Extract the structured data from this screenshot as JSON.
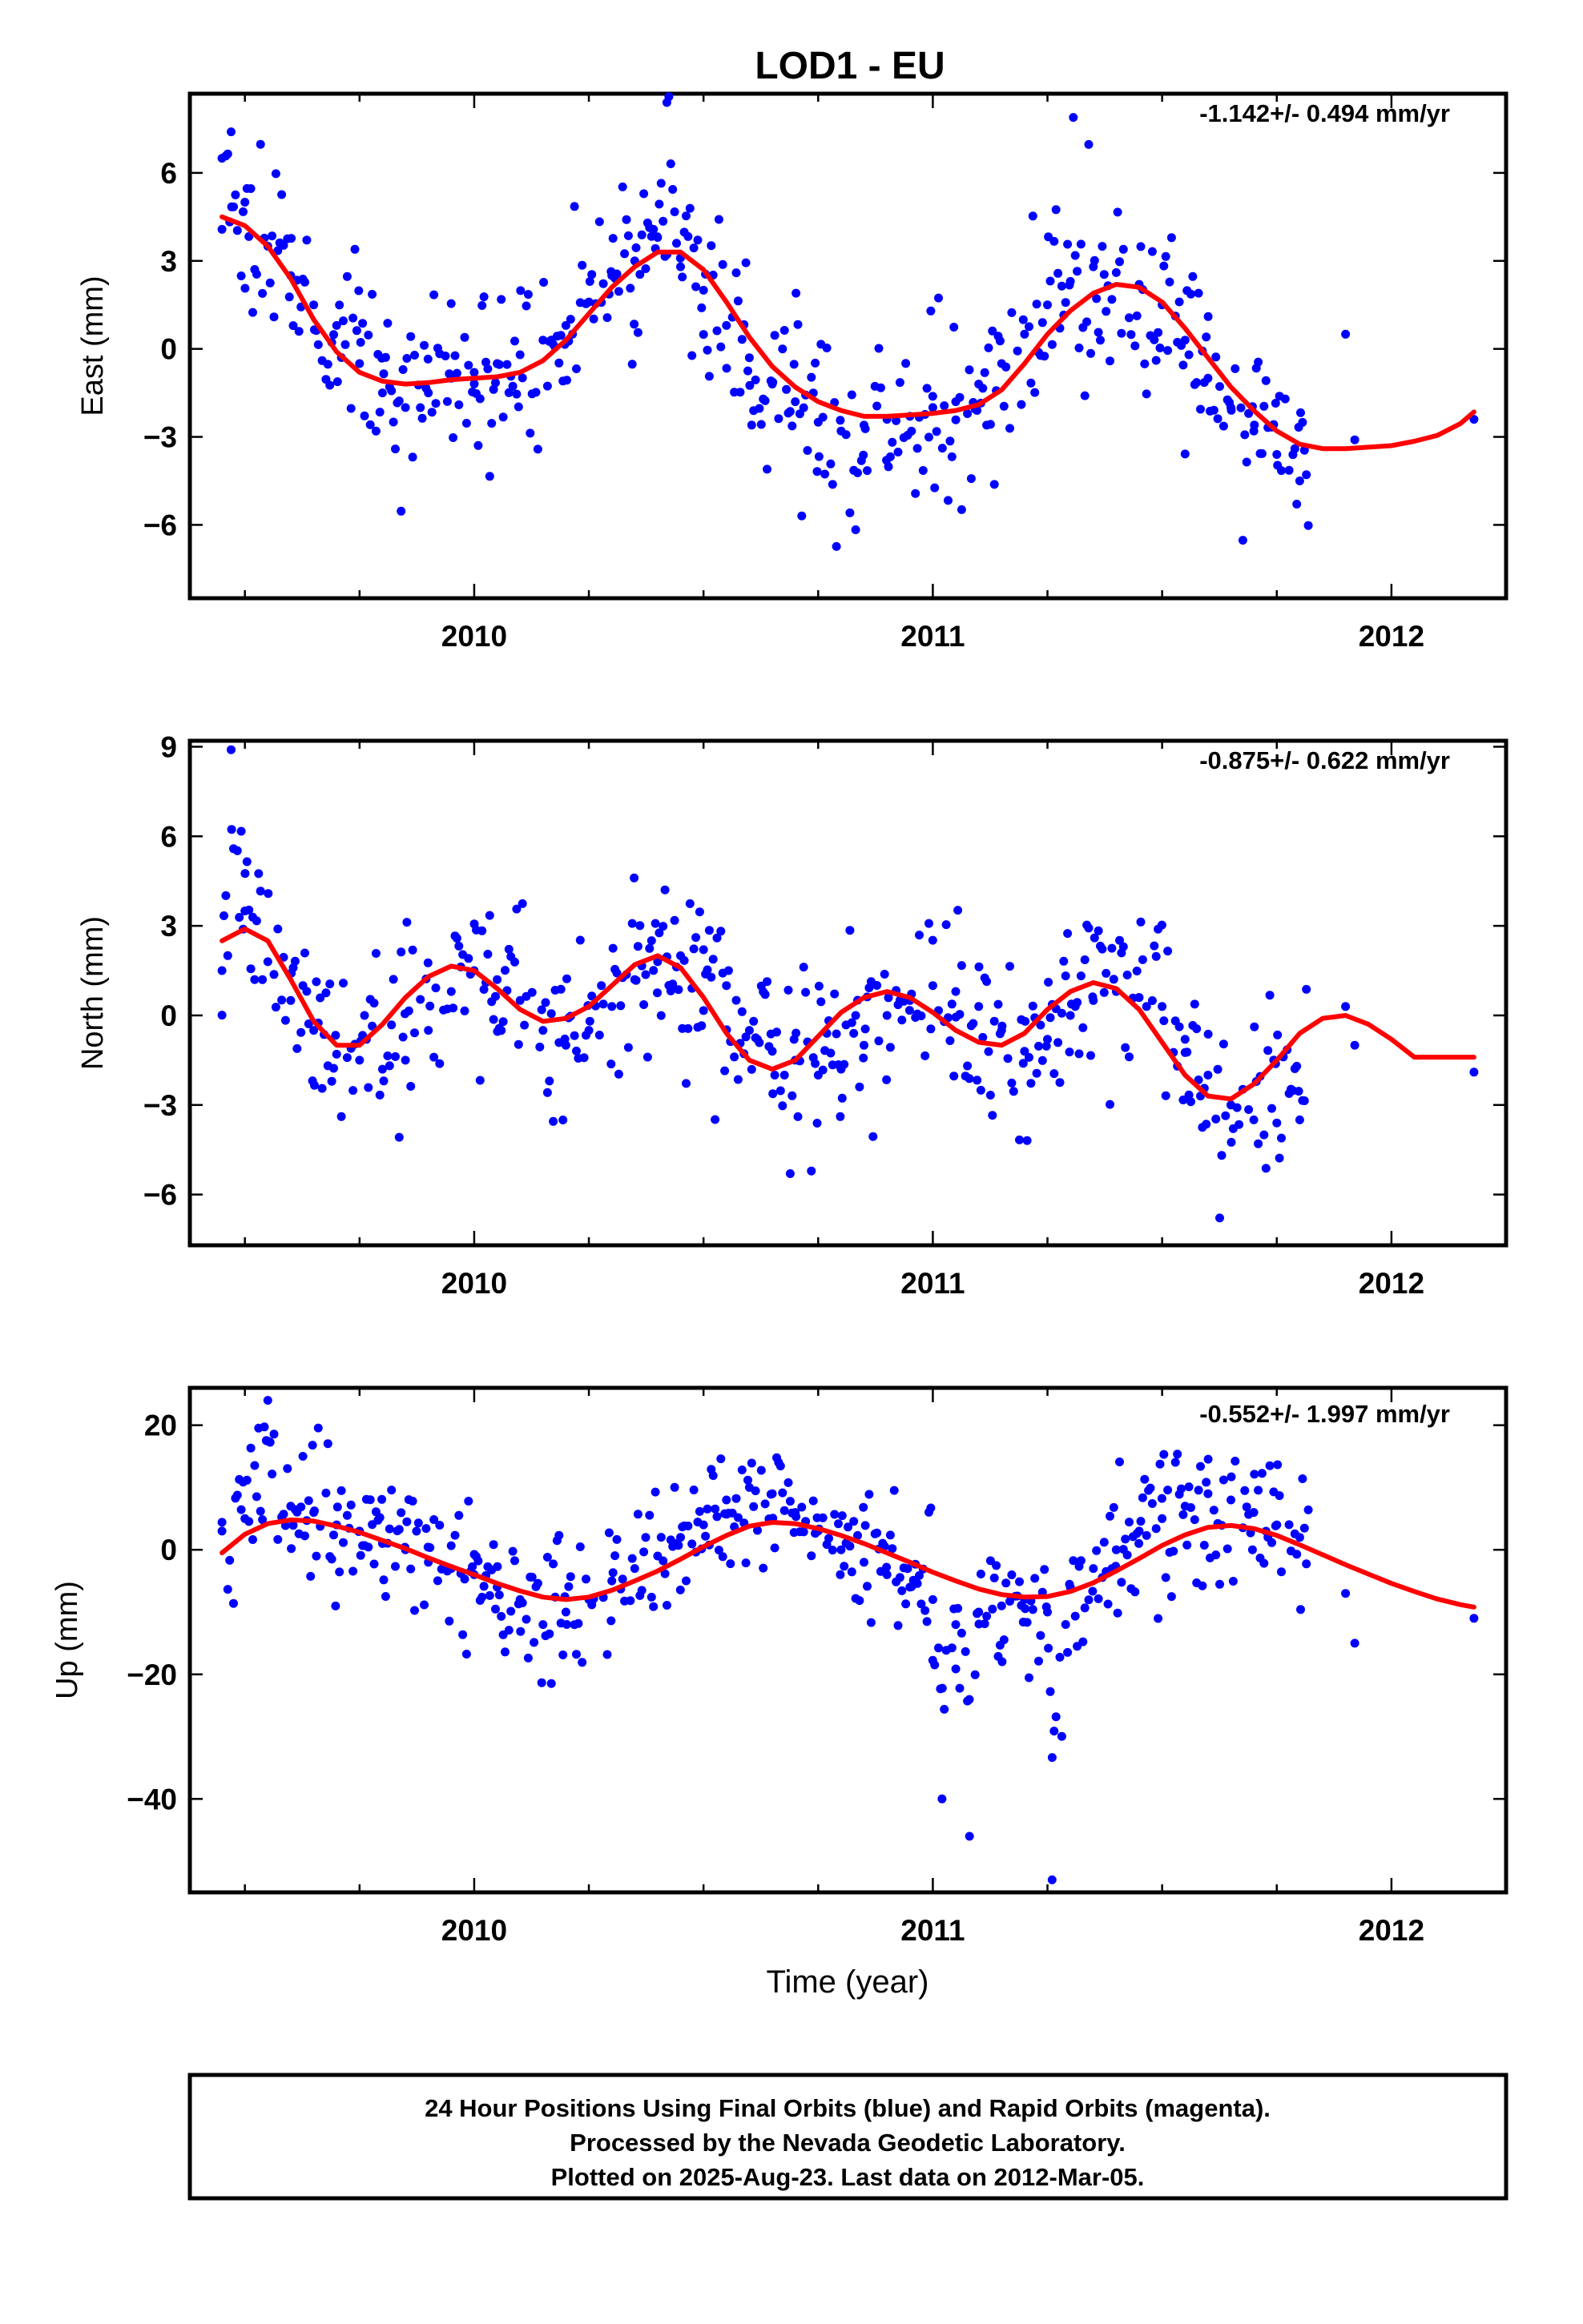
{
  "title": "LOD1 - EU",
  "xlabel": "Time (year)",
  "x_ticks": [
    "2010",
    "2011",
    "2012"
  ],
  "footer": {
    "line1": "24 Hour Positions Using Final Orbits (blue) and Rapid Orbits (magenta).",
    "line2": "Processed by the Nevada Geodetic Laboratory.",
    "line3": "Plotted on 2025-Aug-23. Last data on 2012-Mar-05."
  },
  "colors": {
    "final_orbits": "#0000ff",
    "rapid_orbits": "#ff00ff",
    "model_fit": "#ff0000"
  },
  "chart_data": [
    {
      "type": "scatter",
      "panel": "east",
      "ylabel": "East (mm)",
      "rate_label": "-1.142+/- 0.494 mm/yr",
      "xlim": [
        2009.38,
        2012.25
      ],
      "ylim": [
        -8.5,
        8.7
      ],
      "y_ticks": [
        6,
        3,
        0,
        -3,
        -6
      ],
      "y_tick_labels": [
        "6",
        "3",
        "0",
        "−3",
        "−6"
      ],
      "series": [
        {
          "name": "Final Orbits",
          "points_approx": "dense daily series ~2009.45–2011.82, sparse afterwards",
          "x": [
            2009.45,
            2009.47,
            2009.5,
            2009.55,
            2009.6,
            2009.65,
            2009.7,
            2009.75,
            2009.8,
            2009.85,
            2009.9,
            2009.95,
            2010.0,
            2010.05,
            2010.1,
            2010.15,
            2010.2,
            2010.25,
            2010.3,
            2010.35,
            2010.4,
            2010.42,
            2010.45,
            2010.5,
            2010.55,
            2010.6,
            2010.65,
            2010.7,
            2010.75,
            2010.8,
            2010.85,
            2010.9,
            2010.95,
            2011.0,
            2011.05,
            2011.1,
            2011.15,
            2011.2,
            2011.25,
            2011.3,
            2011.35,
            2011.4,
            2011.45,
            2011.5,
            2011.55,
            2011.6,
            2011.65,
            2011.7,
            2011.75,
            2011.8,
            2011.9,
            2011.92,
            2012.18
          ],
          "y": [
            6.5,
            7.4,
            5.0,
            3.5,
            2.5,
            1.5,
            0.8,
            -0.5,
            -1.5,
            -2.0,
            -1.5,
            -1.0,
            -0.8,
            -0.5,
            -0.2,
            0.3,
            0.8,
            1.6,
            2.5,
            3.0,
            3.8,
            8.4,
            2.8,
            2.0,
            0.8,
            -0.3,
            -1.2,
            -1.8,
            -2.5,
            -2.8,
            -2.6,
            -2.4,
            -2.3,
            -2.0,
            -1.8,
            -1.2,
            -0.5,
            0.5,
            1.5,
            2.3,
            2.8,
            2.6,
            2.2,
            1.5,
            0.3,
            -1.0,
            -2.0,
            -2.8,
            -3.6,
            -4.5,
            0.5,
            -3.1,
            -2.4
          ]
        }
      ],
      "fit_x": [
        2009.45,
        2009.5,
        2009.55,
        2009.6,
        2009.65,
        2009.7,
        2009.75,
        2009.8,
        2009.85,
        2009.9,
        2009.95,
        2010.0,
        2010.05,
        2010.1,
        2010.15,
        2010.2,
        2010.25,
        2010.3,
        2010.35,
        2010.4,
        2010.45,
        2010.5,
        2010.55,
        2010.6,
        2010.65,
        2010.7,
        2010.75,
        2010.8,
        2010.85,
        2010.9,
        2010.95,
        2011.0,
        2011.05,
        2011.1,
        2011.15,
        2011.2,
        2011.25,
        2011.3,
        2011.35,
        2011.4,
        2011.45,
        2011.5,
        2011.55,
        2011.6,
        2011.65,
        2011.7,
        2011.75,
        2011.8,
        2011.85,
        2011.9,
        2011.95,
        2012.0,
        2012.05,
        2012.1,
        2012.15,
        2012.18
      ],
      "fit_y": [
        4.5,
        4.2,
        3.5,
        2.4,
        1.0,
        -0.1,
        -0.8,
        -1.1,
        -1.2,
        -1.15,
        -1.05,
        -1.0,
        -0.95,
        -0.8,
        -0.4,
        0.3,
        1.2,
        2.1,
        2.8,
        3.3,
        3.3,
        2.7,
        1.6,
        0.4,
        -0.6,
        -1.3,
        -1.8,
        -2.1,
        -2.3,
        -2.3,
        -2.25,
        -2.2,
        -2.1,
        -1.9,
        -1.4,
        -0.5,
        0.5,
        1.3,
        1.9,
        2.2,
        2.1,
        1.6,
        0.7,
        -0.3,
        -1.3,
        -2.1,
        -2.8,
        -3.25,
        -3.4,
        -3.4,
        -3.35,
        -3.3,
        -3.15,
        -2.95,
        -2.55,
        -2.15
      ]
    },
    {
      "type": "scatter",
      "panel": "north",
      "ylabel": "North (mm)",
      "rate_label": "-0.875+/- 0.622 mm/yr",
      "xlim": [
        2009.38,
        2012.25
      ],
      "ylim": [
        -7.7,
        9.2
      ],
      "y_ticks": [
        9,
        6,
        3,
        0,
        -3,
        -6
      ],
      "y_tick_labels": [
        "9",
        "6",
        "3",
        "0",
        "−3",
        "−6"
      ],
      "series": [
        {
          "name": "Final Orbits",
          "points_approx": "dense daily series ~2009.45–2011.82, sparse afterwards",
          "x": [
            2009.45,
            2009.47,
            2009.5,
            2009.55,
            2009.6,
            2009.65,
            2009.7,
            2009.75,
            2009.8,
            2009.85,
            2009.9,
            2009.95,
            2010.0,
            2010.05,
            2010.1,
            2010.15,
            2010.2,
            2010.25,
            2010.3,
            2010.35,
            2010.4,
            2010.45,
            2010.5,
            2010.55,
            2010.6,
            2010.65,
            2010.7,
            2010.75,
            2010.8,
            2010.85,
            2010.9,
            2010.95,
            2011.0,
            2011.05,
            2011.1,
            2011.15,
            2011.2,
            2011.25,
            2011.3,
            2011.35,
            2011.4,
            2011.45,
            2011.5,
            2011.55,
            2011.6,
            2011.65,
            2011.7,
            2011.75,
            2011.8,
            2011.9,
            2011.92,
            2012.18
          ],
          "y": [
            1.5,
            8.9,
            3.5,
            1.8,
            0.5,
            -0.5,
            -1.3,
            -1.5,
            -1.8,
            -1.5,
            -0.5,
            0.8,
            1.5,
            1.2,
            0.5,
            -0.5,
            -1.0,
            -0.5,
            0.3,
            1.2,
            1.8,
            2.0,
            2.2,
            1.0,
            -0.5,
            -1.2,
            -1.5,
            -2.0,
            -1.8,
            -1.0,
            0.0,
            0.5,
            1.0,
            0.8,
            0.3,
            -0.5,
            -1.2,
            -0.8,
            0.0,
            0.5,
            0.8,
            0.6,
            0.3,
            -0.8,
            -2.0,
            -3.0,
            -3.5,
            -3.6,
            -3.5,
            0.3,
            -1.0,
            -1.9
          ]
        }
      ],
      "fit_x": [
        2009.45,
        2009.5,
        2009.55,
        2009.6,
        2009.65,
        2009.7,
        2009.75,
        2009.8,
        2009.85,
        2009.9,
        2009.95,
        2010.0,
        2010.05,
        2010.1,
        2010.15,
        2010.2,
        2010.25,
        2010.3,
        2010.35,
        2010.4,
        2010.45,
        2010.5,
        2010.55,
        2010.6,
        2010.65,
        2010.7,
        2010.75,
        2010.8,
        2010.85,
        2010.9,
        2010.95,
        2011.0,
        2011.05,
        2011.1,
        2011.15,
        2011.2,
        2011.25,
        2011.3,
        2011.35,
        2011.4,
        2011.45,
        2011.5,
        2011.55,
        2011.6,
        2011.65,
        2011.7,
        2011.75,
        2011.8,
        2011.85,
        2011.9,
        2011.95,
        2012.0,
        2012.05,
        2012.1,
        2012.15,
        2012.18
      ],
      "fit_y": [
        2.5,
        2.9,
        2.5,
        1.2,
        -0.2,
        -1.0,
        -1.0,
        -0.3,
        0.6,
        1.3,
        1.65,
        1.5,
        0.9,
        0.2,
        -0.2,
        -0.1,
        0.3,
        1.0,
        1.7,
        2.0,
        1.6,
        0.6,
        -0.6,
        -1.5,
        -1.8,
        -1.5,
        -0.7,
        0.1,
        0.6,
        0.8,
        0.6,
        0.1,
        -0.5,
        -0.9,
        -1.0,
        -0.6,
        0.2,
        0.8,
        1.1,
        0.9,
        0.2,
        -0.9,
        -2.0,
        -2.7,
        -2.8,
        -2.3,
        -1.5,
        -0.6,
        -0.1,
        0.0,
        -0.3,
        -0.8,
        -1.4,
        -1.4,
        -1.4,
        -1.4
      ]
    },
    {
      "type": "scatter",
      "panel": "up",
      "ylabel": "Up (mm)",
      "rate_label": "-0.552+/- 1.997 mm/yr",
      "xlim": [
        2009.38,
        2012.25
      ],
      "ylim": [
        -55,
        26
      ],
      "y_ticks": [
        20,
        0,
        -20,
        -40
      ],
      "y_tick_labels": [
        "20",
        "0",
        "−20",
        "−40"
      ],
      "series": [
        {
          "name": "Final Orbits",
          "points_approx": "dense daily series ~2009.45–2011.82, sparse afterwards",
          "x": [
            2009.45,
            2009.5,
            2009.55,
            2009.6,
            2009.65,
            2009.7,
            2009.75,
            2009.8,
            2009.85,
            2009.9,
            2009.95,
            2010.0,
            2010.05,
            2010.1,
            2010.15,
            2010.2,
            2010.25,
            2010.3,
            2010.35,
            2010.4,
            2010.45,
            2010.5,
            2010.55,
            2010.6,
            2010.65,
            2010.7,
            2010.75,
            2010.8,
            2010.85,
            2010.9,
            2010.95,
            2011.0,
            2011.02,
            2011.05,
            2011.08,
            2011.1,
            2011.15,
            2011.2,
            2011.25,
            2011.26,
            2011.3,
            2011.35,
            2011.4,
            2011.45,
            2011.5,
            2011.55,
            2011.6,
            2011.65,
            2011.7,
            2011.75,
            2011.8,
            2011.9,
            2011.92,
            2012.18
          ],
          "y": [
            3,
            5,
            24,
            7,
            6,
            4,
            3,
            1,
            0,
            -2,
            -3,
            -4,
            -6,
            -8,
            -12,
            -10,
            -8,
            -5,
            -3,
            -1,
            2,
            4,
            8,
            10,
            9,
            6,
            3,
            0,
            -2,
            -4,
            -6,
            -8,
            -40,
            -12,
            -46,
            -10,
            -9,
            -8,
            -10,
            -53,
            -6,
            -3,
            0,
            3,
            5,
            7,
            9,
            8,
            6,
            4,
            2,
            -7,
            -15,
            -11
          ]
        }
      ],
      "fit_x": [
        2009.45,
        2009.5,
        2009.55,
        2009.6,
        2009.65,
        2009.7,
        2009.75,
        2009.8,
        2009.85,
        2009.9,
        2009.95,
        2010.0,
        2010.05,
        2010.1,
        2010.15,
        2010.2,
        2010.25,
        2010.3,
        2010.35,
        2010.4,
        2010.45,
        2010.5,
        2010.55,
        2010.6,
        2010.65,
        2010.7,
        2010.75,
        2010.8,
        2010.85,
        2010.9,
        2010.95,
        2011.0,
        2011.05,
        2011.1,
        2011.15,
        2011.2,
        2011.25,
        2011.3,
        2011.35,
        2011.4,
        2011.45,
        2011.5,
        2011.55,
        2011.6,
        2011.65,
        2011.7,
        2011.75,
        2011.8,
        2011.85,
        2011.9,
        2011.95,
        2012.0,
        2012.05,
        2012.1,
        2012.15,
        2012.18
      ],
      "fit_y": [
        -0.5,
        2.5,
        4.2,
        4.8,
        4.6,
        3.8,
        2.8,
        1.5,
        0.2,
        -1.3,
        -2.7,
        -4.0,
        -5.4,
        -6.6,
        -7.6,
        -8.0,
        -7.6,
        -6.5,
        -5.0,
        -3.4,
        -1.5,
        0.5,
        2.3,
        3.8,
        4.4,
        4.2,
        3.4,
        2.3,
        1.0,
        -0.5,
        -2.0,
        -3.6,
        -5.0,
        -6.3,
        -7.2,
        -7.6,
        -7.5,
        -6.7,
        -5.3,
        -3.4,
        -1.4,
        0.7,
        2.4,
        3.6,
        3.9,
        3.4,
        2.3,
        0.8,
        -0.8,
        -2.4,
        -3.9,
        -5.4,
        -6.7,
        -7.9,
        -8.8,
        -9.2
      ]
    }
  ]
}
